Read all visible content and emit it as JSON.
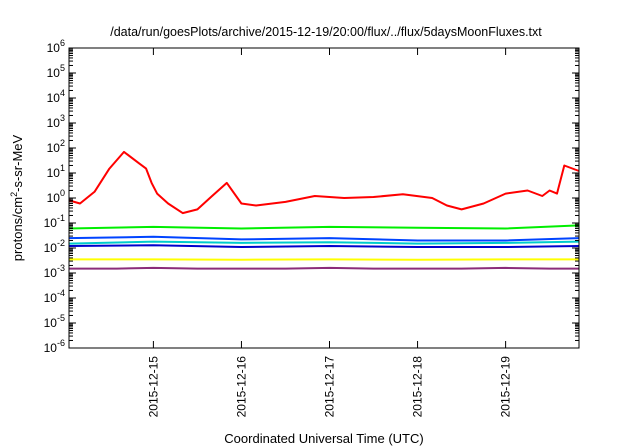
{
  "chart_data": {
    "type": "line",
    "title": "/data/run/goesPlots/archive/2015-12-19/20:00/flux/../flux/5daysMoonFluxes.txt",
    "xlabel": "Coordinated Universal Time (UTC)",
    "ylabel": {
      "pre": "protons/cm",
      "sup": "2",
      "post": "-s-sr-MeV"
    },
    "yscale": "log",
    "ylim": [
      1e-06,
      1000000.0
    ],
    "y_ticks": [
      {
        "base": "10",
        "exp": "-6"
      },
      {
        "base": "10",
        "exp": "-5"
      },
      {
        "base": "10",
        "exp": "-4"
      },
      {
        "base": "10",
        "exp": "-3"
      },
      {
        "base": "10",
        "exp": "-2"
      },
      {
        "base": "10",
        "exp": "-1"
      },
      {
        "base": "10",
        "exp": "0"
      },
      {
        "base": "10",
        "exp": "1"
      },
      {
        "base": "10",
        "exp": "2"
      },
      {
        "base": "10",
        "exp": "3"
      },
      {
        "base": "10",
        "exp": "4"
      },
      {
        "base": "10",
        "exp": "5"
      },
      {
        "base": "10",
        "exp": "6"
      }
    ],
    "xlim": [
      "2015-12-14T01:00",
      "2015-12-19T20:00"
    ],
    "x_ticks": [
      "2015-12-15",
      "2015-12-16",
      "2015-12-17",
      "2015-12-18",
      "2015-12-19"
    ],
    "grid": false,
    "legend": "none",
    "series": [
      {
        "color": "#ff0000",
        "x": [
          "2015-12-14T01:00",
          "2015-12-14T04:00",
          "2015-12-14T08:00",
          "2015-12-14T12:00",
          "2015-12-14T16:00",
          "2015-12-14T20:00",
          "2015-12-14T22:00",
          "2015-12-14T23:30",
          "2015-12-15T01:00",
          "2015-12-15T04:00",
          "2015-12-15T08:00",
          "2015-12-15T12:00",
          "2015-12-15T16:00",
          "2015-12-15T20:00",
          "2015-12-16T00:00",
          "2015-12-16T04:00",
          "2015-12-16T12:00",
          "2015-12-16T20:00",
          "2015-12-17T04:00",
          "2015-12-17T12:00",
          "2015-12-17T20:00",
          "2015-12-18T04:00",
          "2015-12-18T08:00",
          "2015-12-18T12:00",
          "2015-12-18T18:00",
          "2015-12-19T00:00",
          "2015-12-19T06:00",
          "2015-12-19T10:00",
          "2015-12-19T12:00",
          "2015-12-19T14:00",
          "2015-12-19T16:00",
          "2015-12-19T20:00"
        ],
        "y": [
          0.8,
          0.6,
          1.8,
          15,
          70,
          25,
          15,
          4,
          1.5,
          0.6,
          0.25,
          0.35,
          1.2,
          4,
          0.6,
          0.5,
          0.7,
          1.2,
          1.0,
          1.1,
          1.4,
          1.0,
          0.5,
          0.35,
          0.6,
          1.5,
          2.0,
          1.2,
          2.0,
          1.5,
          20,
          12
        ]
      },
      {
        "color": "#00ee00",
        "x": [
          "2015-12-14T01:00",
          "2015-12-15T00:00",
          "2015-12-16T00:00",
          "2015-12-17T00:00",
          "2015-12-18T00:00",
          "2015-12-19T00:00",
          "2015-12-19T20:00"
        ],
        "y": [
          0.06,
          0.07,
          0.06,
          0.07,
          0.065,
          0.06,
          0.08
        ]
      },
      {
        "color": "#00cccc",
        "x": [
          "2015-12-14T01:00",
          "2015-12-15T00:00",
          "2015-12-16T00:00",
          "2015-12-17T00:00",
          "2015-12-18T00:00",
          "2015-12-19T00:00",
          "2015-12-19T20:00"
        ],
        "y": [
          0.015,
          0.018,
          0.016,
          0.017,
          0.015,
          0.016,
          0.018
        ]
      },
      {
        "color": "#0044ff",
        "x": [
          "2015-12-14T01:00",
          "2015-12-15T00:00",
          "2015-12-16T00:00",
          "2015-12-17T00:00",
          "2015-12-18T00:00",
          "2015-12-19T00:00",
          "2015-12-19T20:00"
        ],
        "y": [
          0.025,
          0.028,
          0.022,
          0.025,
          0.02,
          0.02,
          0.025
        ]
      },
      {
        "color": "#0000cc",
        "x": [
          "2015-12-14T01:00",
          "2015-12-15T00:00",
          "2015-12-16T00:00",
          "2015-12-17T00:00",
          "2015-12-18T00:00",
          "2015-12-19T00:00",
          "2015-12-19T20:00"
        ],
        "y": [
          0.012,
          0.013,
          0.011,
          0.012,
          0.011,
          0.011,
          0.012
        ]
      },
      {
        "color": "#ffff00",
        "x": [
          "2015-12-14T01:00",
          "2015-12-15T00:00",
          "2015-12-16T00:00",
          "2015-12-17T00:00",
          "2015-12-18T00:00",
          "2015-12-19T00:00",
          "2015-12-19T20:00"
        ],
        "y": [
          0.0035,
          0.0035,
          0.0034,
          0.0035,
          0.0034,
          0.0035,
          0.0035
        ]
      },
      {
        "color": "#8b2c7a",
        "x": [
          "2015-12-14T01:00",
          "2015-12-14T14:00",
          "2015-12-15T00:00",
          "2015-12-15T12:00",
          "2015-12-16T00:00",
          "2015-12-16T12:00",
          "2015-12-17T00:00",
          "2015-12-17T12:00",
          "2015-12-18T00:00",
          "2015-12-18T12:00",
          "2015-12-19T00:00",
          "2015-12-19T12:00",
          "2015-12-19T20:00"
        ],
        "y": [
          0.0015,
          0.0015,
          0.0016,
          0.0015,
          0.0015,
          0.0015,
          0.0016,
          0.0015,
          0.0015,
          0.0015,
          0.0016,
          0.0015,
          0.0015
        ]
      }
    ]
  }
}
